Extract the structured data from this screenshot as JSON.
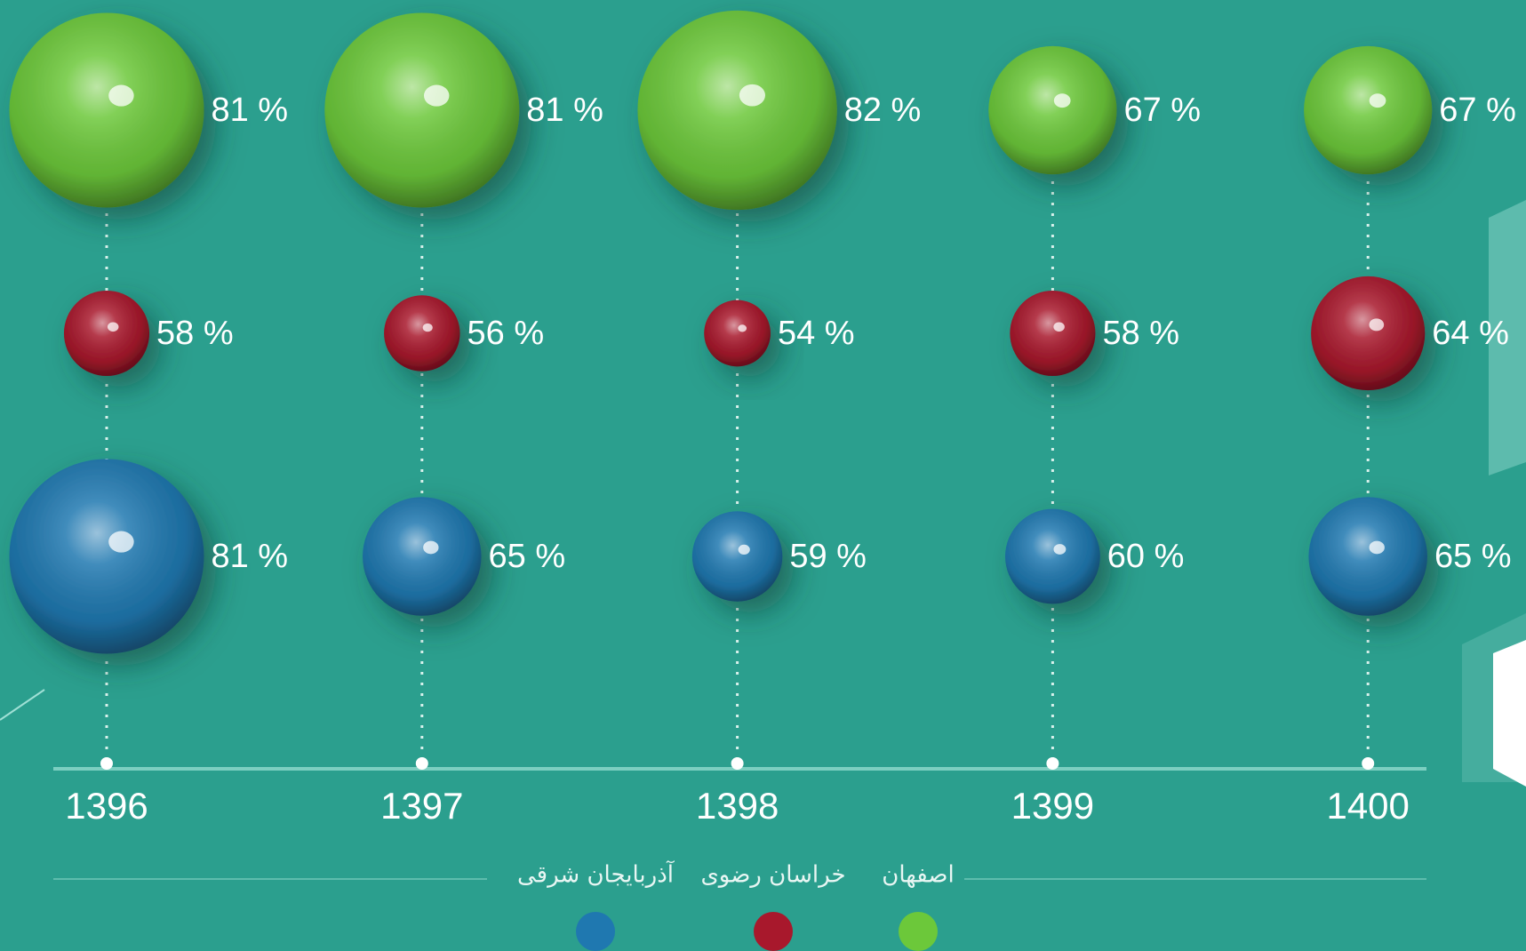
{
  "chart_data": {
    "type": "bubble",
    "categories": [
      "1396",
      "1397",
      "1398",
      "1399",
      "1400"
    ],
    "series": [
      {
        "name": "اصفهان",
        "color": "#6cc83a",
        "values": [
          81,
          81,
          82,
          67,
          67
        ],
        "value_labels": [
          "81 %",
          "81 %",
          "82 %",
          "67 %",
          "67 %"
        ]
      },
      {
        "name": "خراسان رضوی",
        "color": "#a8182c",
        "values": [
          58,
          56,
          54,
          58,
          64
        ],
        "value_labels": [
          "58 %",
          "56 %",
          "54 %",
          "58 %",
          "64 %"
        ]
      },
      {
        "name": "آذربایجان شرقی",
        "color": "#1f78b0",
        "values": [
          81,
          65,
          59,
          60,
          65
        ],
        "value_labels": [
          "81 %",
          "65 %",
          "59 %",
          "60 %",
          "65 %"
        ]
      }
    ]
  }
}
